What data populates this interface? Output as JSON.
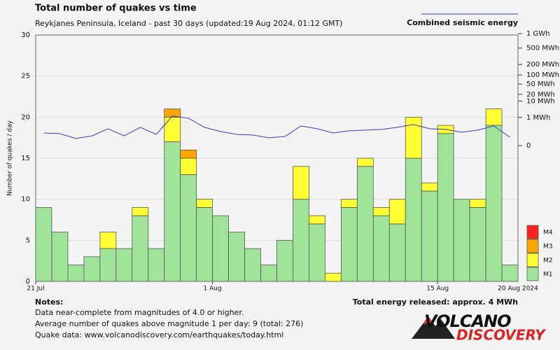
{
  "chart_data": {
    "type": "bar",
    "stacked": true,
    "title": "Total number of quakes vs time",
    "subtitle": "Reykjanes Peninsula, Iceland - past 30 days (updated:19 Aug 2024, 01:12 GMT)",
    "y_label": "Number of quakes / day",
    "categories": [
      "21 Jul",
      null,
      null,
      null,
      null,
      null,
      null,
      null,
      null,
      null,
      null,
      "1 Aug",
      null,
      null,
      null,
      null,
      null,
      null,
      null,
      null,
      null,
      null,
      null,
      null,
      null,
      "15 Aug",
      null,
      null,
      null,
      null
    ],
    "x_end_label": "20 Aug 2024",
    "ylim": [
      0,
      30
    ],
    "yticks": [
      0,
      5,
      10,
      15,
      20,
      25,
      30
    ],
    "grid": true,
    "y2scale": "power",
    "y2exponent": 0.2,
    "y2lim": [
      0,
      1000
    ],
    "y2ticks": [
      {
        "value": 1000,
        "label": "1 GWh"
      },
      {
        "value": 500,
        "label": "500 MWh"
      },
      {
        "value": 200,
        "label": "200 MWh"
      },
      {
        "value": 100,
        "label": "100 MWh"
      },
      {
        "value": 50,
        "label": "50 MWh"
      },
      {
        "value": 20,
        "label": "20 MWh"
      },
      {
        "value": 10,
        "label": "10 MWh"
      },
      {
        "value": 1,
        "label": "1 MWh"
      },
      0
    ],
    "series": [
      {
        "name": "M1",
        "color": "#a0e49a",
        "values": [
          9,
          6,
          2,
          3,
          4,
          4,
          8,
          4,
          17,
          13,
          9,
          8,
          6,
          4,
          2,
          5,
          10,
          7,
          0,
          9,
          14,
          8,
          7,
          15,
          11,
          18,
          10,
          9,
          19,
          2
        ]
      },
      {
        "name": "M2",
        "color": "#ffff33",
        "values": [
          0,
          0,
          0,
          0,
          2,
          0,
          1,
          0,
          3,
          2,
          1,
          0,
          0,
          0,
          0,
          0,
          4,
          1,
          1,
          1,
          1,
          1,
          3,
          5,
          1,
          1,
          0,
          1,
          2,
          0
        ]
      },
      {
        "name": "M3",
        "color": "#ffa500",
        "values": [
          0,
          0,
          0,
          0,
          0,
          0,
          0,
          0,
          1,
          1,
          0,
          0,
          0,
          0,
          0,
          0,
          0,
          0,
          0,
          0,
          0,
          0,
          0,
          0,
          0,
          0,
          0,
          0,
          0,
          0
        ]
      },
      {
        "name": "M4",
        "color": "#ff2020",
        "values": [
          0,
          0,
          0,
          0,
          0,
          0,
          0,
          0,
          0,
          0,
          0,
          0,
          0,
          0,
          0,
          0,
          0,
          0,
          0,
          0,
          0,
          0,
          0,
          0,
          0,
          0,
          0,
          0,
          0,
          0
        ]
      }
    ],
    "energy": {
      "name": "Combined seismic energy",
      "type": "line",
      "axis": "y2",
      "color": "#3a3ac8",
      "values": [
        0.018,
        0.014,
        0.001,
        0.005,
        0.078,
        0.005,
        0.116,
        0.01,
        1.28,
        0.88,
        0.116,
        0.031,
        0.01,
        0.0074,
        0.0016,
        0.0036,
        0.168,
        0.078,
        0.018,
        0.04,
        0.05,
        0.063,
        0.116,
        0.237,
        0.078,
        0.063,
        0.024,
        0.05,
        0.168,
        0.0024
      ]
    },
    "total_energy": "Total energy released: approx. 4 MWh"
  },
  "notes": {
    "heading": "Notes:",
    "lines": [
      "Data near-complete from magnitudes of 4.0 or higher.",
      "Average number of quakes above magnitude 1 per day: 9 (total: 276)",
      "Quake data: www.volcanodiscovery.com/earthquakes/today.html"
    ]
  },
  "logo": {
    "line1": "VOLCANO",
    "line2": "DISCOVERY"
  }
}
